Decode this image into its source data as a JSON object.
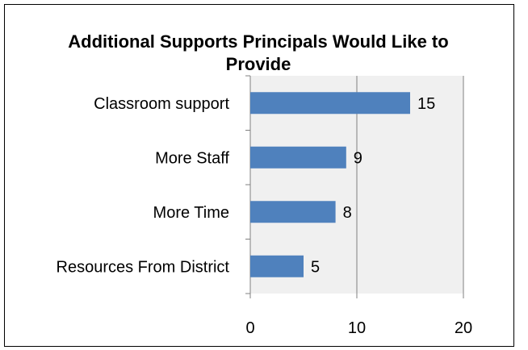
{
  "chart_data": {
    "type": "bar",
    "orientation": "horizontal",
    "title": "Additional Supports Principals Would Like to Provide",
    "categories": [
      "Classroom support",
      "More Staff",
      "More Time",
      "Resources From District"
    ],
    "values": [
      15,
      9,
      8,
      5
    ],
    "xlim": [
      0,
      20
    ],
    "x_ticks": [
      0,
      10,
      20
    ],
    "xlabel": "",
    "ylabel": "",
    "grid": "vertical",
    "legend": "none",
    "data_labels": true,
    "colors": {
      "bar": "#4f81bd",
      "plot_background": "#f0f0f0",
      "gridline": "#808080",
      "axis": "#808080",
      "text": "#000000"
    }
  }
}
